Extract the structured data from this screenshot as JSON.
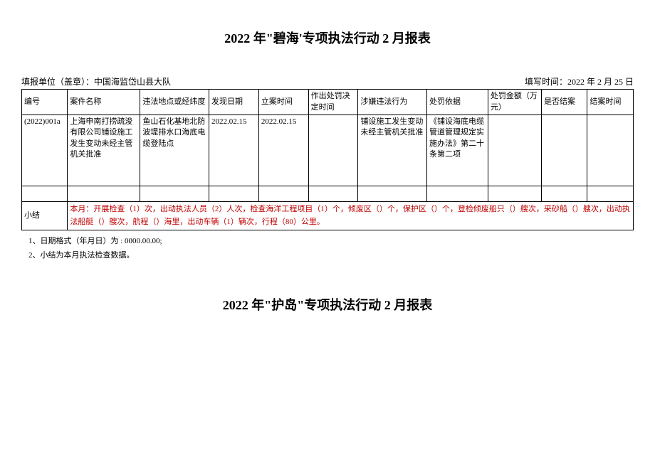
{
  "title1": "2022 年\"碧海'专项执法行动 2 月报表",
  "filing_unit_label": "填报单位（盖章）：中国海监岱山县大队",
  "filing_date_label": "填写时间：2022 年 2 月 25 日",
  "columns": {
    "c1": "编号",
    "c2": "案件名称",
    "c3": "违法地点或经纬度",
    "c4": "发现日期",
    "c5": "立案时间",
    "c6": "作出处罚决定时间",
    "c7": "涉嫌违法行为",
    "c8": "处罚依据",
    "c9": "处罚金额（万元）",
    "c10": "是否结案",
    "c11": "结案时间"
  },
  "row1": {
    "c1": "(2022)001a",
    "c2": "上海申南打捞疏浚有限公司铺设施工发生变动未经主管机关批准",
    "c3": "鱼山石化基地北防波堤排水口海底电缆登陆点",
    "c4": "2022.02.15",
    "c5": "2022.02.15",
    "c6": "",
    "c7": "铺设施工发生变动未经主管机关批准",
    "c8": "《铺设海底电缆管道管理规定实施办法》第二十条第二项",
    "c9": "",
    "c10": "",
    "c11": ""
  },
  "summary_label": "小结",
  "summary_text": "本月：开展检查（1）次，出动执法人员（2）人次，检查海洋工程项目（1）个，倾废区（）个，保护区（）个，登检倾废船只（）艘次，采砂船（）艘次，出动执法船艇（）艘次，航程（）海里，出动车辆（1）辆次，行程（80）公里。",
  "note1": "1、日期格式（年月日）为 : 0000.00.00;",
  "note2": "2、小结为本月执法检查数据。",
  "title2": "2022 年\"护岛\"专项执法行动 2 月报表",
  "colors": {
    "summary_text": "#c00000",
    "border": "#000000",
    "background": "#ffffff"
  }
}
